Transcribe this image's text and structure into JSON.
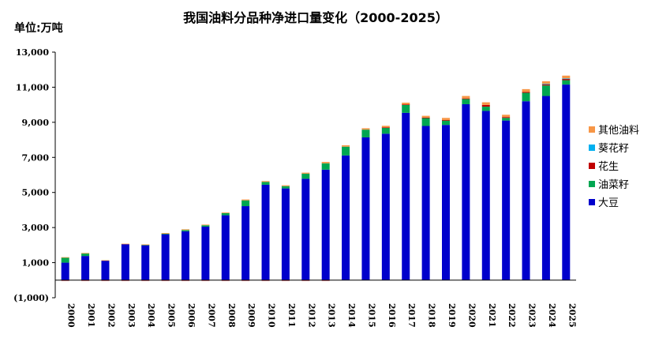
{
  "chart_data": {
    "type": "bar",
    "stacked": true,
    "title": "我国油料分品种净进口量变化（2000-2025）",
    "unit_label": "单位:万吨",
    "ylim": [
      -1000,
      13000
    ],
    "y_ticks": [
      -1000,
      1000,
      3000,
      5000,
      7000,
      9000,
      11000,
      13000
    ],
    "y_tick_labels": [
      "(1,000)",
      "1,000",
      "3,000",
      "5,000",
      "7,000",
      "9,000",
      "11,000",
      "13,000"
    ],
    "legend_position": "right",
    "categories": [
      "2000",
      "2001",
      "2002",
      "2003",
      "2004",
      "2005",
      "2006",
      "2007",
      "2008",
      "2009",
      "2010",
      "2011",
      "2012",
      "2013",
      "2014",
      "2015",
      "2016",
      "2017",
      "2018",
      "2019",
      "2020",
      "2021",
      "2022",
      "2023",
      "2024",
      "2025"
    ],
    "series": [
      {
        "name": "大豆",
        "color": "#0000CC",
        "values": [
          1000,
          1380,
          1120,
          2060,
          1990,
          2620,
          2790,
          3050,
          3700,
          4220,
          5440,
          5230,
          5780,
          6300,
          7110,
          8140,
          8350,
          9540,
          8790,
          8850,
          10030,
          9650,
          9100,
          10200,
          10500,
          11150
        ]
      },
      {
        "name": "油菜籽",
        "color": "#00A651",
        "values": [
          290,
          150,
          0,
          0,
          30,
          30,
          70,
          80,
          120,
          330,
          160,
          130,
          290,
          360,
          500,
          440,
          350,
          470,
          470,
          250,
          300,
          240,
          150,
          480,
          600,
          250
        ]
      },
      {
        "name": "花生",
        "color": "#C00000",
        "values": [
          -15,
          -20,
          -25,
          -20,
          -15,
          -15,
          -10,
          -10,
          -10,
          -5,
          -5,
          -5,
          -5,
          -5,
          0,
          0,
          10,
          10,
          10,
          30,
          30,
          100,
          50,
          50,
          70,
          80
        ]
      },
      {
        "name": "葵花籽",
        "color": "#00B0F0",
        "values": [
          0,
          0,
          0,
          0,
          0,
          0,
          0,
          0,
          0,
          0,
          0,
          0,
          0,
          0,
          0,
          0,
          0,
          0,
          0,
          0,
          0,
          0,
          0,
          0,
          20,
          20
        ]
      },
      {
        "name": "其他油料",
        "color": "#F79646",
        "values": [
          20,
          20,
          20,
          20,
          20,
          40,
          40,
          40,
          40,
          50,
          50,
          50,
          60,
          80,
          80,
          80,
          90,
          100,
          100,
          120,
          140,
          150,
          130,
          160,
          150,
          160
        ]
      }
    ],
    "legend_order": [
      "其他油料",
      "葵花籽",
      "花生",
      "油菜籽",
      "大豆"
    ]
  }
}
